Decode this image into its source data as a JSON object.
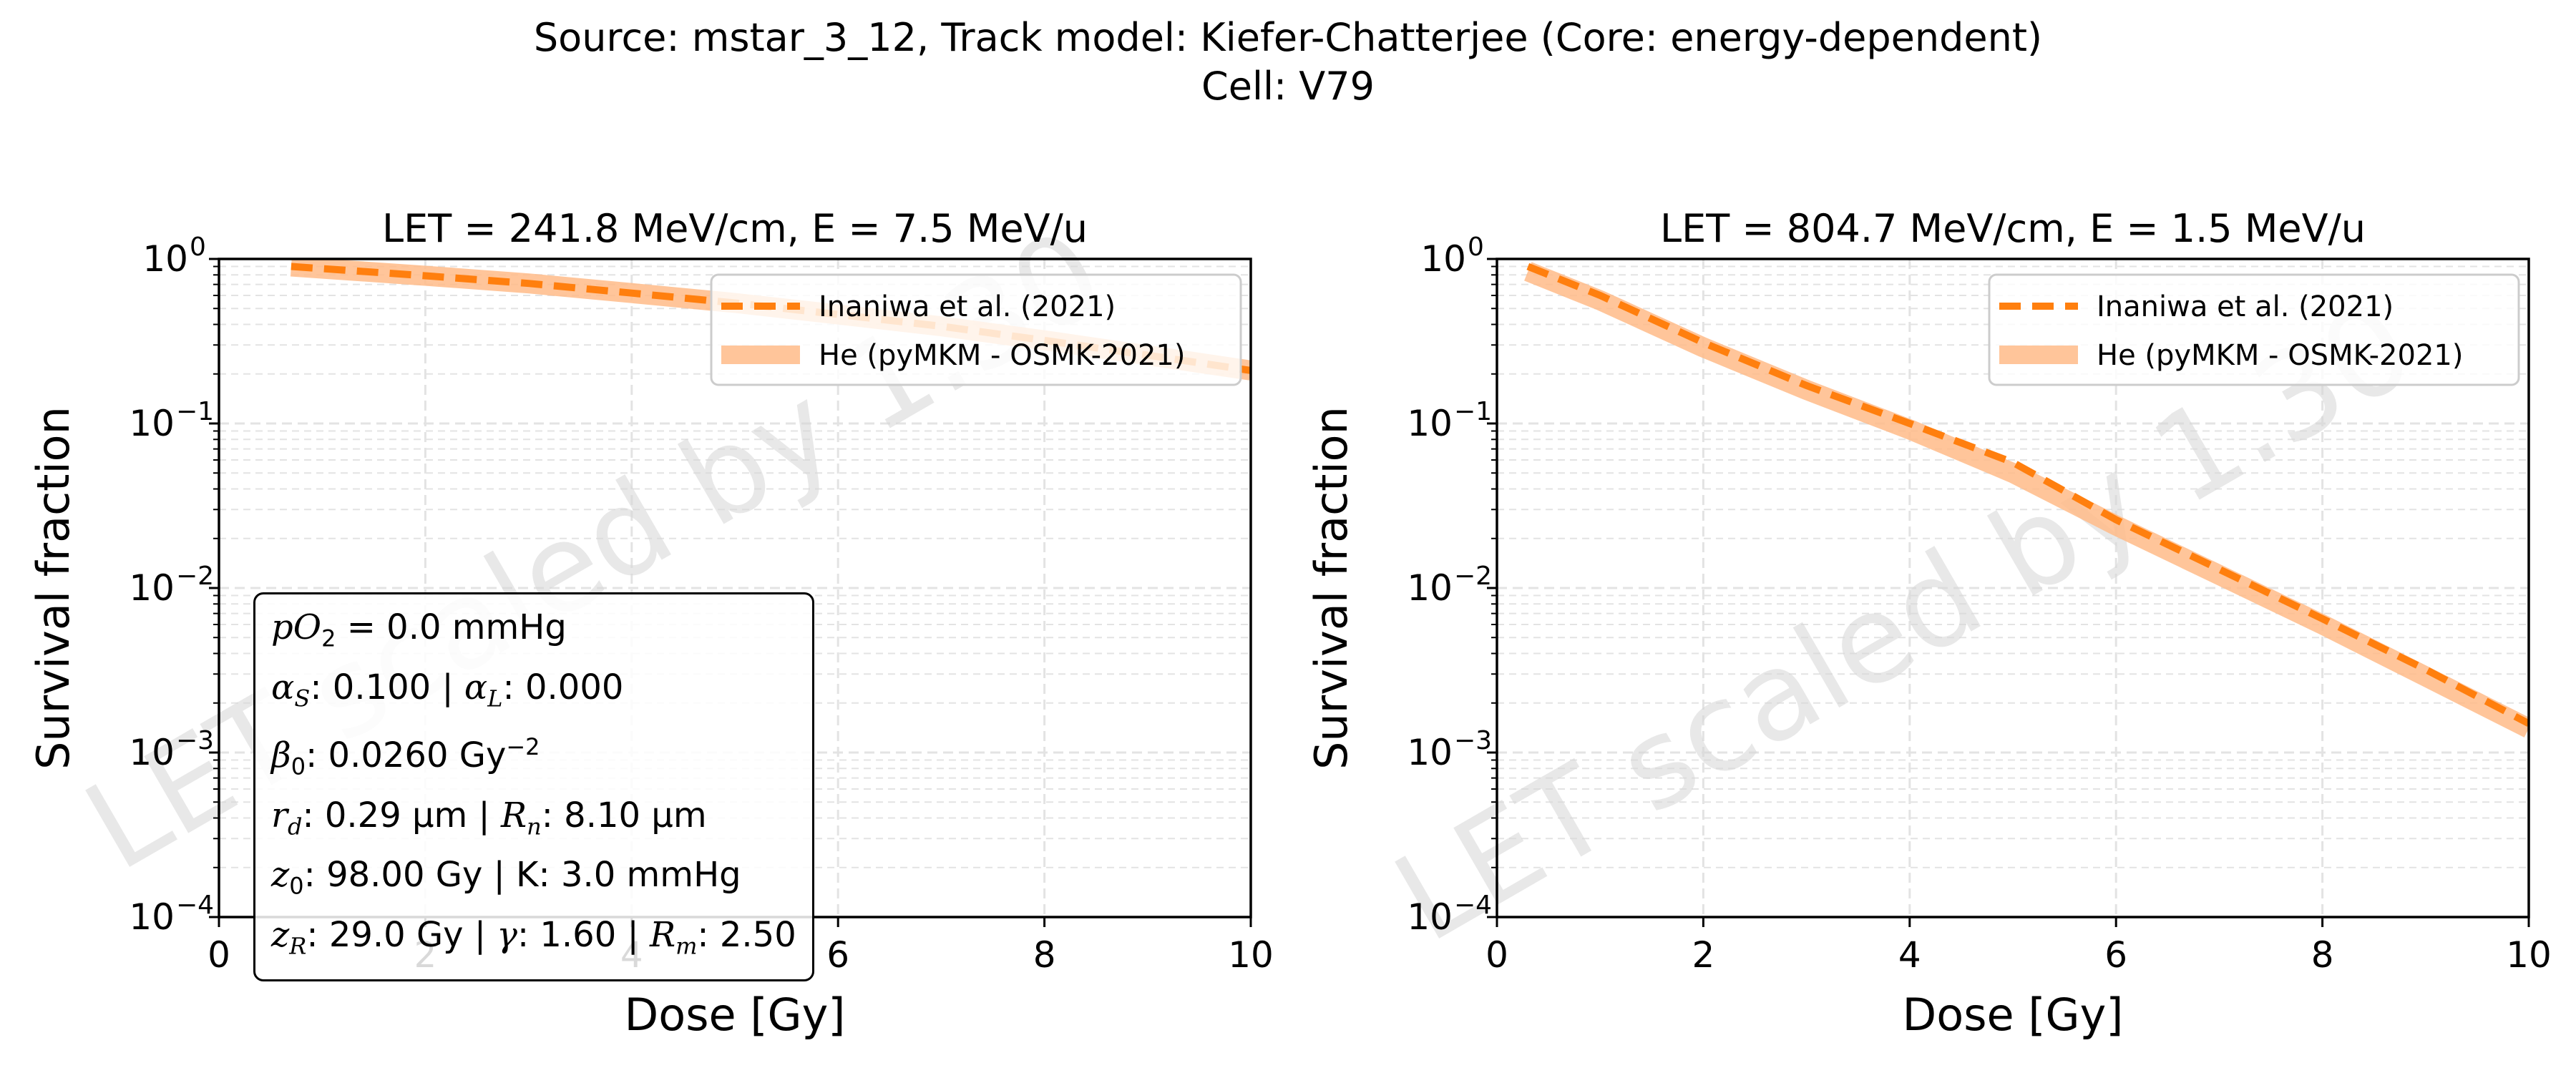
{
  "figure": {
    "title_line1": "Source: mstar_3_12, Track model: Kiefer-Chatterjee (Core: energy-dependent)",
    "title_line2": "Cell: V79",
    "watermark": "LET scaled by 1.30"
  },
  "colors": {
    "inaniwa": "#ff7f0e",
    "he": "#ffbb88",
    "grid": "#e3e3e3"
  },
  "info_box": {
    "po2_value": "= 0.0 mmHg",
    "alpha_s": ": 0.100 | ",
    "alpha_l": ": 0.000",
    "beta0": ": 0.0260 Gy",
    "beta0_exp": "−2",
    "rd": ": 0.29 μm | ",
    "rn": ": 8.10 μm",
    "z0": ": 98.00 Gy | K: 3.0 mmHg",
    "zr": ": 29.0 Gy | ",
    "gamma": ": 1.60 | ",
    "rm": ": 2.50"
  },
  "chart_data": [
    {
      "type": "line",
      "title": "LET = 241.8 MeV/cm, E = 7.5 MeV/u",
      "xlabel": "Dose [Gy]",
      "ylabel": "Survival fraction",
      "xlim": [
        0,
        10
      ],
      "ylim": [
        0.0001,
        1
      ],
      "yscale": "log",
      "x_ticks": [
        "0",
        "2",
        "4",
        "6",
        "8",
        "10"
      ],
      "y_ticks": [
        "10",
        "10",
        "10",
        "10",
        "10"
      ],
      "y_tick_exponents": [
        "0",
        "−1",
        "−2",
        "−3",
        "−4"
      ],
      "grid": true,
      "legend_position": "upper right",
      "series": [
        {
          "name": "Inaniwa et al. (2021)",
          "style": "dashed",
          "x": [
            0.7,
            2,
            3,
            4,
            5,
            6,
            7,
            8,
            9,
            10
          ],
          "y": [
            0.9,
            0.79,
            0.71,
            0.62,
            0.54,
            0.46,
            0.39,
            0.32,
            0.26,
            0.21
          ]
        },
        {
          "name": "He (pyMKM - OSMK-2021)",
          "style": "solid-thick",
          "x": [
            0.7,
            2,
            3,
            4,
            5,
            6,
            7,
            8,
            9,
            10
          ],
          "y": [
            0.9,
            0.79,
            0.71,
            0.62,
            0.54,
            0.46,
            0.39,
            0.32,
            0.26,
            0.21
          ]
        }
      ]
    },
    {
      "type": "line",
      "title": "LET = 804.7 MeV/cm, E = 1.5 MeV/u",
      "xlabel": "Dose [Gy]",
      "ylabel": "Survival fraction",
      "xlim": [
        0,
        10
      ],
      "ylim": [
        0.0001,
        1
      ],
      "yscale": "log",
      "x_ticks": [
        "0",
        "2",
        "4",
        "6",
        "8",
        "10"
      ],
      "y_ticks": [
        "10",
        "10",
        "10",
        "10",
        "10"
      ],
      "y_tick_exponents": [
        "0",
        "−1",
        "−2",
        "−3",
        "−4"
      ],
      "grid": true,
      "legend_position": "upper right",
      "series": [
        {
          "name": "Inaniwa et al. (2021)",
          "style": "dashed",
          "x": [
            0.3,
            1,
            2,
            3,
            4,
            5,
            6,
            7,
            8,
            9,
            10
          ],
          "y": [
            0.9,
            0.6,
            0.31,
            0.17,
            0.1,
            0.058,
            0.026,
            0.013,
            0.0065,
            0.0032,
            0.0015
          ]
        },
        {
          "name": "He (pyMKM - OSMK-2021)",
          "style": "solid-thick",
          "x": [
            0.3,
            1,
            2,
            3,
            4,
            5,
            6,
            7,
            8,
            9,
            10
          ],
          "y": [
            0.84,
            0.56,
            0.29,
            0.16,
            0.092,
            0.05,
            0.024,
            0.012,
            0.006,
            0.0029,
            0.0014
          ]
        }
      ]
    }
  ]
}
